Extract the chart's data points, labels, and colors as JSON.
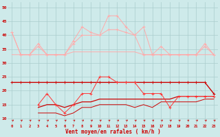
{
  "x": [
    0,
    1,
    2,
    3,
    4,
    5,
    6,
    7,
    8,
    9,
    10,
    11,
    12,
    13,
    14,
    15,
    16,
    17,
    18,
    19,
    20,
    21,
    22,
    23
  ],
  "line_rafales_peak": [
    41,
    33,
    33,
    37,
    33,
    33,
    33,
    38,
    43,
    41,
    40,
    47,
    47,
    43,
    40,
    43,
    33,
    36,
    33,
    33,
    33,
    33,
    37,
    33
  ],
  "line_rafales_mid": [
    41,
    33,
    33,
    36,
    33,
    33,
    33,
    37,
    40,
    40,
    40,
    42,
    42,
    41,
    40,
    33,
    33,
    33,
    33,
    33,
    33,
    33,
    36,
    33
  ],
  "line_rafales_flat": [
    33,
    33,
    33,
    33,
    33,
    33,
    33,
    34,
    34,
    34,
    34,
    34,
    34,
    34,
    34,
    33,
    33,
    33,
    33,
    33,
    33,
    33,
    33,
    33
  ],
  "line_vent_dark": [
    23,
    23,
    23,
    23,
    23,
    23,
    23,
    23,
    23,
    23,
    23,
    23,
    23,
    23,
    23,
    23,
    23,
    23,
    23,
    23,
    23,
    23,
    23,
    19
  ],
  "line_vent_mid": [
    null,
    null,
    null,
    15,
    19,
    15,
    12,
    15,
    19,
    19,
    25,
    25,
    23,
    23,
    23,
    19,
    19,
    19,
    14,
    18,
    18,
    18,
    18,
    18
  ],
  "line_trend1": [
    null,
    null,
    null,
    14,
    15,
    15,
    14,
    15,
    16,
    16,
    17,
    17,
    17,
    17,
    17,
    17,
    17,
    17,
    17,
    18,
    18,
    18,
    18,
    18
  ],
  "line_trend2": [
    null,
    null,
    null,
    12,
    12,
    12,
    11,
    12,
    14,
    14,
    15,
    15,
    15,
    15,
    14,
    15,
    14,
    16,
    16,
    16,
    16,
    16,
    17,
    17
  ],
  "background_color": "#ceeaea",
  "grid_color": "#aacccc",
  "color_light_pink": "#ffaaaa",
  "color_dark_red": "#cc0000",
  "color_med_red": "#ff3333",
  "xlabel": "Vent moyen/en rafales ( km/h )",
  "tick_color": "#cc0000",
  "ylim": [
    8,
    52
  ],
  "yticks": [
    10,
    15,
    20,
    25,
    30,
    35,
    40,
    45,
    50
  ]
}
